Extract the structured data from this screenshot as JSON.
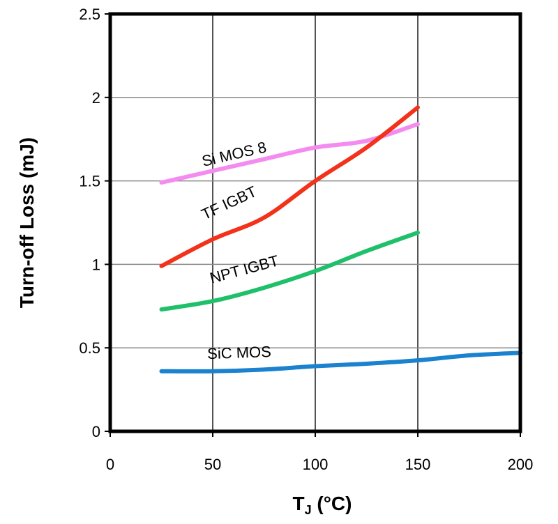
{
  "chart_data": {
    "type": "line",
    "title": "",
    "xlabel": "T",
    "xlabel_sub": "J",
    "xlabel_unit": " (°C)",
    "ylabel": "Turn-off Loss (mJ)",
    "xlim": [
      0,
      200
    ],
    "ylim": [
      0,
      2.5
    ],
    "x_ticks": [
      0,
      50,
      100,
      150,
      200
    ],
    "y_ticks": [
      0,
      0.5,
      1,
      1.5,
      2,
      2.5
    ],
    "x_tick_labels": [
      "0",
      "50",
      "100",
      "150",
      "200"
    ],
    "y_tick_labels": [
      "0",
      "0.5",
      "1",
      "1.5",
      "2",
      "2.5"
    ],
    "grid": true,
    "series": [
      {
        "name": "Si MOS 8",
        "color": "#f48cf0",
        "x": [
          25,
          50,
          75,
          100,
          125,
          150
        ],
        "y": [
          1.49,
          1.56,
          1.63,
          1.7,
          1.74,
          1.84
        ],
        "label_x": 27,
        "label_y": 1.63,
        "label_angle": -13
      },
      {
        "name": "TF IGBT",
        "color": "#f2321a",
        "x": [
          25,
          50,
          75,
          100,
          125,
          150
        ],
        "y": [
          0.99,
          1.15,
          1.28,
          1.5,
          1.7,
          1.94
        ],
        "label_x": 25,
        "label_y": 1.34,
        "label_angle": -25
      },
      {
        "name": "NPT IGBT",
        "color": "#1fc06a",
        "x": [
          25,
          50,
          75,
          100,
          125,
          150
        ],
        "y": [
          0.73,
          0.78,
          0.86,
          0.96,
          1.08,
          1.19
        ],
        "label_x": 32,
        "label_y": 0.94,
        "label_angle": -15
      },
      {
        "name": "SiC MOS",
        "color": "#1a82cf",
        "x": [
          25,
          50,
          75,
          100,
          125,
          150,
          175,
          200
        ],
        "y": [
          0.36,
          0.36,
          0.37,
          0.39,
          0.405,
          0.425,
          0.455,
          0.47
        ],
        "label_x": 29,
        "label_y": 0.44,
        "label_angle": -2
      }
    ]
  }
}
